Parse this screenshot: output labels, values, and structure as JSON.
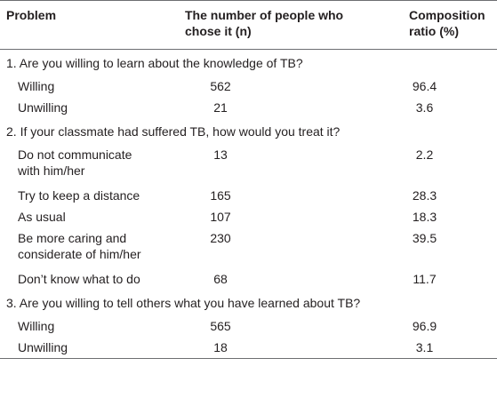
{
  "header": {
    "col1": "Problem",
    "col2": "The number of people who chose it (n)",
    "col3": "Composition ratio (%)"
  },
  "sections": [
    {
      "question": "1. Are you willing to learn about the knowledge of TB?",
      "rows": [
        {
          "label": "Willing",
          "n": "562",
          "ratio": "96.4"
        },
        {
          "label": "Unwilling",
          "n": "21",
          "ratio": "3.6"
        }
      ]
    },
    {
      "question": "2. If your classmate had suffered TB, how would you treat it?",
      "rows": [
        {
          "label": "Do not communicate with him/her",
          "n": "13",
          "ratio": "2.2"
        },
        {
          "label": "Try to keep a distance",
          "n": "165",
          "ratio": "28.3"
        },
        {
          "label": "As usual",
          "n": "107",
          "ratio": "18.3"
        },
        {
          "label": "Be more caring and considerate of him/her",
          "n": "230",
          "ratio": "39.5"
        },
        {
          "label": "Don’t know what to do",
          "n": "68",
          "ratio": "11.7"
        }
      ]
    },
    {
      "question": "3. Are you willing to tell others what you have learned about TB?",
      "rows": [
        {
          "label": "Willing",
          "n": "565",
          "ratio": "96.9"
        },
        {
          "label": "Unwilling",
          "n": "18",
          "ratio": "3.1"
        }
      ]
    }
  ]
}
